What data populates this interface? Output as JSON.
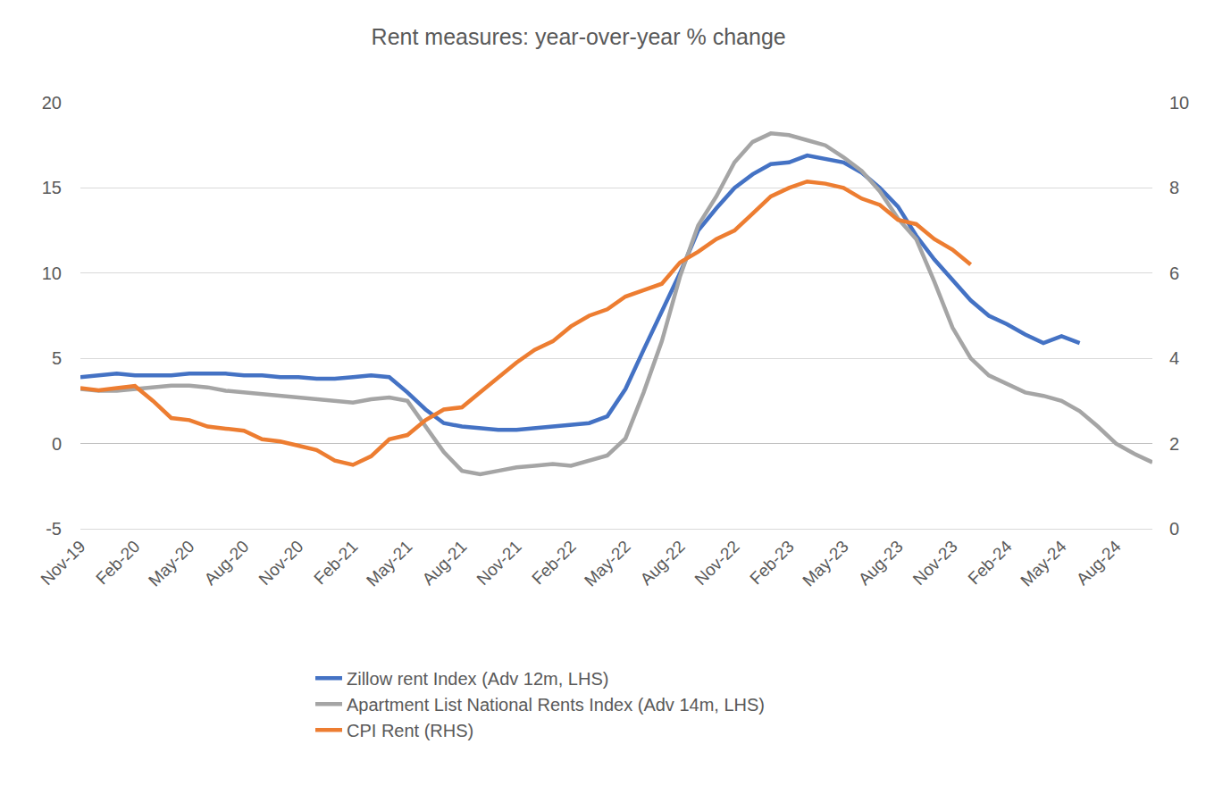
{
  "chart_data": {
    "type": "line",
    "title": "Rent measures: year-over-year % change",
    "categories": [
      "Nov-19",
      null,
      null,
      "Feb-20",
      null,
      null,
      "May-20",
      null,
      null,
      "Aug-20",
      null,
      null,
      "Nov-20",
      null,
      null,
      "Feb-21",
      null,
      null,
      "May-21",
      null,
      null,
      "Aug-21",
      null,
      null,
      "Nov-21",
      null,
      null,
      "Feb-22",
      null,
      null,
      "May-22",
      null,
      null,
      "Aug-22",
      null,
      null,
      "Nov-22",
      null,
      null,
      "Feb-23",
      null,
      null,
      "May-23",
      null,
      null,
      "Aug-23",
      null,
      null,
      "Nov-23",
      null,
      null,
      "Feb-24",
      null,
      null,
      "May-24",
      null,
      null,
      "Aug-24",
      null,
      null
    ],
    "series": [
      {
        "name": "Zillow rent Index (Adv 12m, LHS)",
        "color": "#4472c4",
        "values": [
          3.9,
          4.0,
          4.1,
          4.0,
          4.0,
          4.0,
          4.1,
          4.1,
          4.1,
          4.0,
          4.0,
          3.9,
          3.9,
          3.8,
          3.8,
          3.9,
          4.0,
          3.9,
          3.0,
          2.0,
          1.2,
          1.0,
          0.9,
          0.8,
          0.8,
          0.9,
          1.0,
          1.1,
          1.2,
          1.6,
          3.2,
          5.5,
          7.8,
          10.0,
          12.5,
          13.8,
          15.0,
          15.8,
          16.4,
          16.5,
          16.9,
          16.7,
          16.5,
          15.9,
          15.0,
          13.9,
          12.2,
          10.8,
          9.6,
          8.4,
          7.5,
          7.0,
          6.4,
          5.9,
          6.3,
          5.9,
          null,
          null,
          null,
          null
        ]
      },
      {
        "name": "Apartment List National Rents Index (Adv 14m, LHS)",
        "color": "#a5a5a5",
        "values": [
          3.2,
          3.1,
          3.1,
          3.2,
          3.3,
          3.4,
          3.4,
          3.3,
          3.1,
          3.0,
          2.9,
          2.8,
          2.7,
          2.6,
          2.5,
          2.4,
          2.6,
          2.7,
          2.5,
          1.0,
          -0.5,
          -1.6,
          -1.8,
          -1.6,
          -1.4,
          -1.3,
          -1.2,
          -1.3,
          -1.0,
          -0.7,
          0.3,
          3.0,
          6.0,
          9.8,
          12.8,
          14.5,
          16.5,
          17.7,
          18.2,
          18.1,
          17.8,
          17.5,
          16.8,
          16.0,
          14.8,
          13.2,
          12.0,
          9.5,
          6.8,
          5.0,
          4.0,
          3.5,
          3.0,
          2.8,
          2.5,
          1.9,
          1.0,
          0.0,
          -0.6,
          -1.1
        ]
      },
      {
        "name": "CPI Rent (RHS)",
        "color": "#ed7d31",
        "axis": "y2",
        "values": [
          3.3,
          3.25,
          3.3,
          3.35,
          3.0,
          2.6,
          2.55,
          2.4,
          2.35,
          2.3,
          2.1,
          2.05,
          1.95,
          1.85,
          1.6,
          1.5,
          1.7,
          2.1,
          2.2,
          2.55,
          2.8,
          2.85,
          3.2,
          3.55,
          3.9,
          4.2,
          4.4,
          4.75,
          5.0,
          5.15,
          5.45,
          5.6,
          5.75,
          6.25,
          6.5,
          6.8,
          7.0,
          7.4,
          7.8,
          8.0,
          8.15,
          8.1,
          8.0,
          7.75,
          7.6,
          7.25,
          7.15,
          6.8,
          6.55,
          6.2,
          null,
          null,
          null,
          null,
          null,
          null,
          null,
          null,
          null,
          null
        ]
      }
    ],
    "ylim": [
      -5,
      20
    ],
    "yticks": [
      -5,
      0,
      5,
      10,
      15,
      20
    ],
    "y2lim": [
      0,
      10
    ],
    "y2ticks": [
      0,
      2,
      4,
      6,
      8,
      10
    ],
    "grid": true,
    "legend": "bottom"
  }
}
